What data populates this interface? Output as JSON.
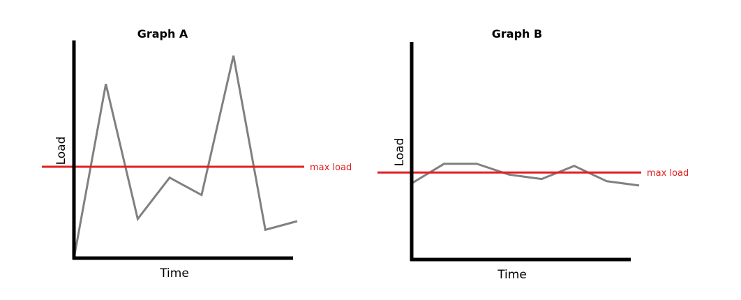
{
  "chart_data": [
    {
      "type": "line",
      "title": "Graph A",
      "xlabel": "Time",
      "ylabel": "Load",
      "x": [
        0,
        1,
        2,
        3,
        4,
        5,
        6,
        7
      ],
      "series": [
        {
          "values": [
            0,
            8.0,
            1.8,
            3.7,
            2.9,
            9.3,
            1.3,
            1.7
          ]
        }
      ],
      "reference_line": {
        "label": "max load",
        "value": 4.2
      },
      "xlim": [
        0,
        7
      ],
      "ylim": [
        0,
        10
      ],
      "grid": false,
      "colors": {
        "line": "#808080",
        "reference": "#e02020",
        "axes": "#000000"
      }
    },
    {
      "type": "line",
      "title": "Graph B",
      "xlabel": "Time",
      "ylabel": "Load",
      "x": [
        0,
        1,
        2,
        3,
        4,
        5,
        6,
        7
      ],
      "series": [
        {
          "values": [
            3.5,
            4.4,
            4.4,
            3.9,
            3.7,
            4.3,
            3.6,
            3.4
          ]
        }
      ],
      "reference_line": {
        "label": "max load",
        "value": 4.0
      },
      "xlim": [
        0,
        7
      ],
      "ylim": [
        0,
        10
      ],
      "grid": false,
      "colors": {
        "line": "#808080",
        "reference": "#e02020",
        "axes": "#000000"
      }
    }
  ]
}
